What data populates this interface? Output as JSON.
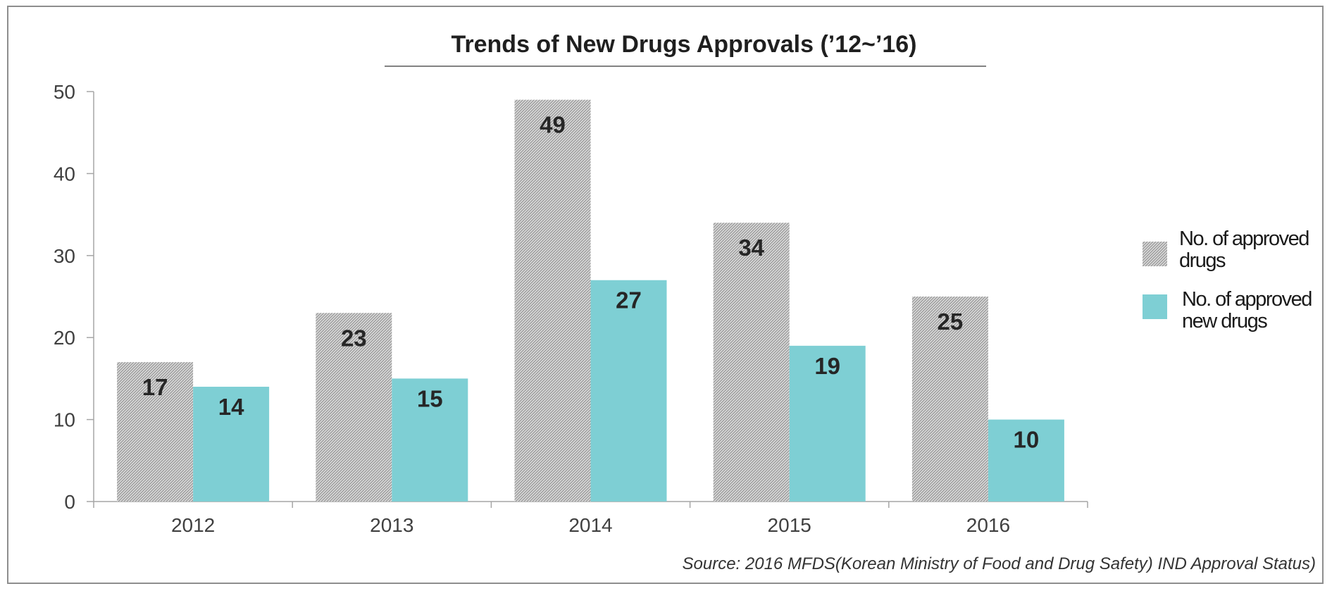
{
  "chart_data": {
    "type": "bar",
    "title": "Trends of New Drugs Approvals (’12~’16)",
    "categories": [
      "2012",
      "2013",
      "2014",
      "2015",
      "2016"
    ],
    "series": [
      {
        "name": "No. of approved drugs",
        "legend_lines": [
          "No. of approved",
          "drugs"
        ],
        "pattern": "diagonal-hatch",
        "color": "#a6a6a6",
        "values": [
          17,
          23,
          49,
          34,
          25
        ],
        "data_labels": [
          "17",
          "23",
          "49",
          "34",
          "25"
        ]
      },
      {
        "name": "No. of approved new drugs",
        "legend_lines": [
          "No. of approved",
          "new drugs"
        ],
        "color": "#7ecfd4",
        "values": [
          14,
          15,
          27,
          19,
          10
        ],
        "data_labels": [
          "14",
          "15",
          "27",
          "19",
          "10"
        ]
      }
    ],
    "ylim": [
      0,
      50
    ],
    "yticks": [
      0,
      10,
      20,
      30,
      40,
      50
    ],
    "ytick_labels": [
      "0",
      "10",
      "20",
      "30",
      "40",
      "50"
    ],
    "xlabel": "",
    "ylabel": "",
    "grid": false,
    "legend_position": "right"
  },
  "source": "Source: 2016 MFDS(Korean Ministry of Food and Drug Safety) IND Approval Status)"
}
